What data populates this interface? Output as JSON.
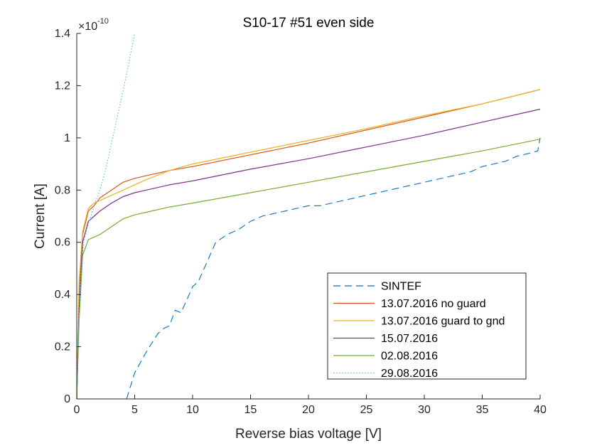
{
  "chart_data": {
    "type": "line",
    "title": "S10-17 #51 even side",
    "xlabel": "Reverse bias voltage [V]",
    "ylabel": "Current [A]",
    "y_exponent_base": "×10",
    "y_exponent_power": "-10",
    "xlim": [
      0,
      40
    ],
    "ylim": [
      0,
      1.4
    ],
    "xticks": [
      0,
      5,
      10,
      15,
      20,
      25,
      30,
      35,
      40
    ],
    "yticks": [
      0,
      0.2,
      0.4,
      0.6,
      0.8,
      1,
      1.2,
      1.4
    ],
    "ytick_labels": [
      "0",
      "0.2",
      "0.4",
      "0.6",
      "0.8",
      "1",
      "1.2",
      "1.4"
    ],
    "grid": false,
    "legend_position": "bottom-right",
    "series": [
      {
        "name": "SINTEF",
        "color": "#0072BD",
        "dash": "dashed",
        "x": [
          4.3,
          5,
          6,
          7,
          7.5,
          8,
          8.5,
          9,
          9.5,
          10,
          10.5,
          11,
          11.5,
          12,
          13,
          14,
          15,
          16,
          17,
          18,
          19,
          20,
          21,
          22,
          23,
          24,
          25,
          26,
          27,
          28,
          29,
          30,
          31,
          32,
          33,
          34,
          35,
          36,
          37,
          38,
          39,
          39.8,
          40
        ],
        "y": [
          0.0,
          0.1,
          0.18,
          0.25,
          0.27,
          0.28,
          0.34,
          0.33,
          0.38,
          0.43,
          0.45,
          0.5,
          0.55,
          0.6,
          0.63,
          0.65,
          0.68,
          0.7,
          0.71,
          0.72,
          0.73,
          0.74,
          0.74,
          0.75,
          0.76,
          0.77,
          0.78,
          0.79,
          0.8,
          0.81,
          0.82,
          0.83,
          0.84,
          0.85,
          0.86,
          0.87,
          0.89,
          0.9,
          0.91,
          0.93,
          0.94,
          0.95,
          1.0
        ]
      },
      {
        "name": "13.07.2016 no guard",
        "color": "#D95319",
        "dash": "solid",
        "x": [
          0,
          0.2,
          0.5,
          1,
          1.5,
          2,
          3,
          4,
          5,
          6,
          8,
          10,
          15,
          20,
          25,
          30,
          35,
          40
        ],
        "y": [
          0,
          0.4,
          0.63,
          0.72,
          0.74,
          0.77,
          0.8,
          0.83,
          0.845,
          0.855,
          0.875,
          0.89,
          0.935,
          0.98,
          1.03,
          1.08,
          1.13,
          1.185
        ]
      },
      {
        "name": "13.07.2016 guard to gnd",
        "color": "#EDB120",
        "dash": "solid",
        "x": [
          0,
          0.2,
          0.5,
          1,
          1.5,
          2,
          3,
          4,
          5,
          6,
          8,
          10,
          15,
          20,
          25,
          30,
          35,
          40
        ],
        "y": [
          0,
          0.45,
          0.64,
          0.73,
          0.75,
          0.76,
          0.78,
          0.8,
          0.82,
          0.84,
          0.875,
          0.9,
          0.945,
          0.99,
          1.035,
          1.085,
          1.13,
          1.185
        ]
      },
      {
        "name": "15.07.2016",
        "color": "#7E2F8E",
        "dash": "solid",
        "x": [
          0,
          0.2,
          0.5,
          1,
          1.5,
          2,
          3,
          4,
          5,
          6,
          8,
          10,
          15,
          20,
          25,
          30,
          35,
          40
        ],
        "y": [
          0,
          0.35,
          0.6,
          0.68,
          0.7,
          0.72,
          0.75,
          0.775,
          0.79,
          0.8,
          0.82,
          0.835,
          0.88,
          0.92,
          0.965,
          1.01,
          1.06,
          1.11
        ]
      },
      {
        "name": "02.08.2016",
        "color": "#77AC30",
        "dash": "solid",
        "x": [
          0,
          0.2,
          0.5,
          1,
          1.5,
          2,
          3,
          4,
          5,
          6,
          8,
          10,
          15,
          20,
          25,
          30,
          35,
          40
        ],
        "y": [
          0,
          0.3,
          0.55,
          0.61,
          0.62,
          0.63,
          0.66,
          0.69,
          0.705,
          0.715,
          0.735,
          0.75,
          0.79,
          0.83,
          0.87,
          0.91,
          0.95,
          0.995
        ]
      },
      {
        "name": "29.08.2016",
        "color": "#4DBEEE",
        "dash": "dotted",
        "x": [
          0,
          0.3,
          0.6,
          1,
          1.5,
          2,
          2.5,
          3,
          3.5,
          4,
          4.5,
          5
        ],
        "y": [
          0,
          0.45,
          0.6,
          0.67,
          0.74,
          0.8,
          0.88,
          0.98,
          1.08,
          1.18,
          1.29,
          1.4
        ]
      }
    ]
  }
}
